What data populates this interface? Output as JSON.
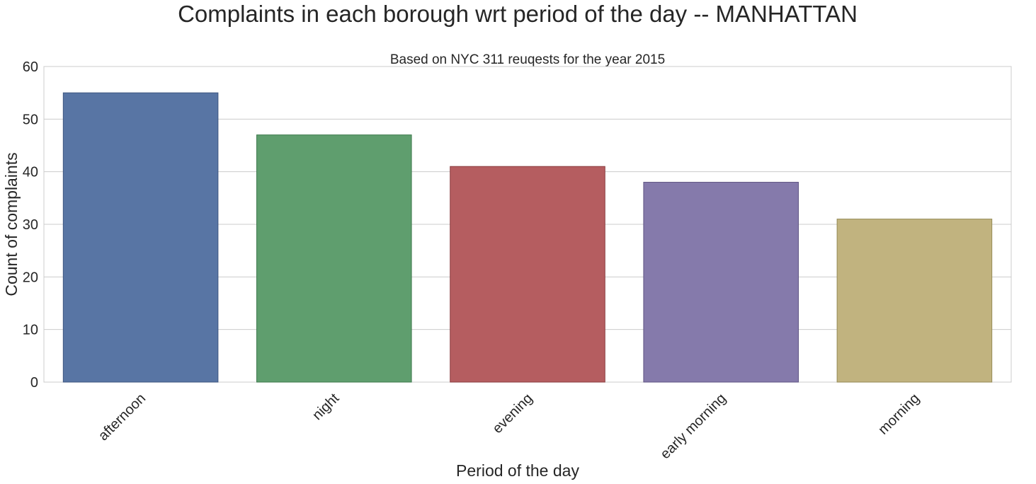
{
  "chart_data": {
    "type": "bar",
    "title": "Complaints in each borough wrt period of the day -- MANHATTAN",
    "subtitle": "Based on NYC 311 reuqests for the year 2015",
    "xlabel": "Period of the day",
    "ylabel": "Count of complaints",
    "categories": [
      "afternoon",
      "night",
      "evening",
      "early morning",
      "morning"
    ],
    "values": [
      55,
      47,
      41,
      38,
      31
    ],
    "colors": [
      "#5875a4",
      "#5f9e6e",
      "#b55d60",
      "#857aab",
      "#c1b37f"
    ],
    "edge_colors": [
      "#3f5781",
      "#3f7a4e",
      "#8b3e41",
      "#5f5583",
      "#958a57"
    ],
    "ylim": [
      0,
      60
    ],
    "yticks": [
      0,
      10,
      20,
      30,
      40,
      50,
      60
    ],
    "x_tick_rotation": 45,
    "grid": "horizontal",
    "legend": "none"
  }
}
